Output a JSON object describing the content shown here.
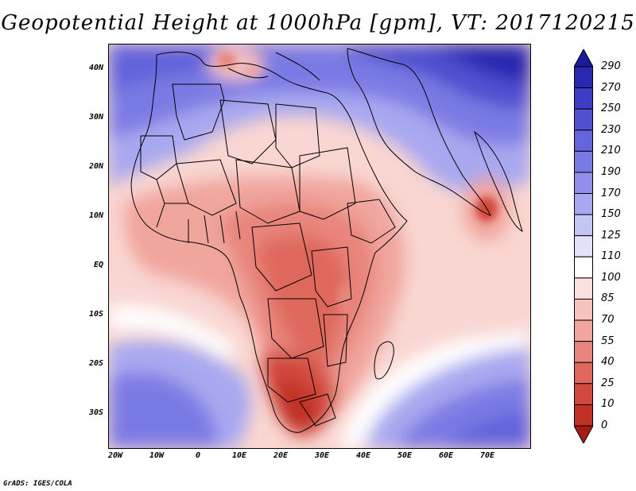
{
  "title": "Geopotential Height at 1000hPa [gpm], VT: 2017120215",
  "credit": "GrADS: IGES/COLA",
  "lat_labels": [
    "40N",
    "30N",
    "20N",
    "10N",
    "EQ",
    "10S",
    "20S",
    "30S"
  ],
  "lon_labels": [
    "20W",
    "10W",
    "0",
    "10E",
    "20E",
    "30E",
    "40E",
    "50E",
    "60E",
    "70E"
  ],
  "colorbar": {
    "labels": [
      "290",
      "270",
      "250",
      "230",
      "210",
      "190",
      "170",
      "150",
      "125",
      "110",
      "100",
      "85",
      "70",
      "55",
      "40",
      "25",
      "10",
      "0"
    ],
    "colors": [
      "#1a1a9a",
      "#2828b0",
      "#3c3cc4",
      "#5050d0",
      "#6464dc",
      "#7a7ae4",
      "#9090ea",
      "#a8a8f0",
      "#c4c4f5",
      "#e2e2fa",
      "#ffffff",
      "#fce0dd",
      "#f7c3bd",
      "#f0a59d",
      "#e8857c",
      "#df675c",
      "#d24a3e",
      "#c13026",
      "#a51b15"
    ]
  },
  "colors": {
    "high_blue": "#1a1a9a",
    "low_red": "#a51b15",
    "coastline": "#000000"
  }
}
